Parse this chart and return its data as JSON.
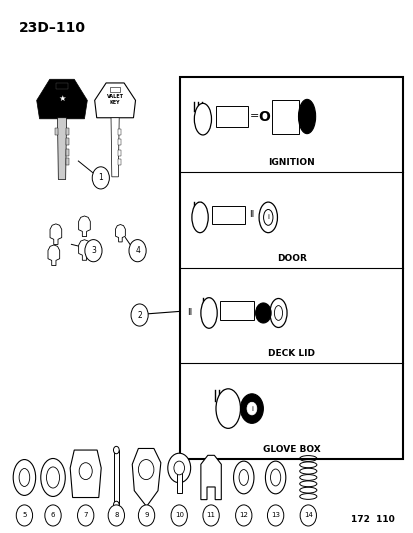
{
  "title": "23D–110",
  "background_color": "#ffffff",
  "page_ref": "172  110",
  "section_labels": [
    "IGNITION",
    "DOOR",
    "DECK LID",
    "GLOVE BOX"
  ],
  "part_numbers": [
    "1",
    "2",
    "3",
    "4",
    "5",
    "6",
    "7",
    "8",
    "9",
    "10",
    "11",
    "12",
    "13",
    "14"
  ]
}
